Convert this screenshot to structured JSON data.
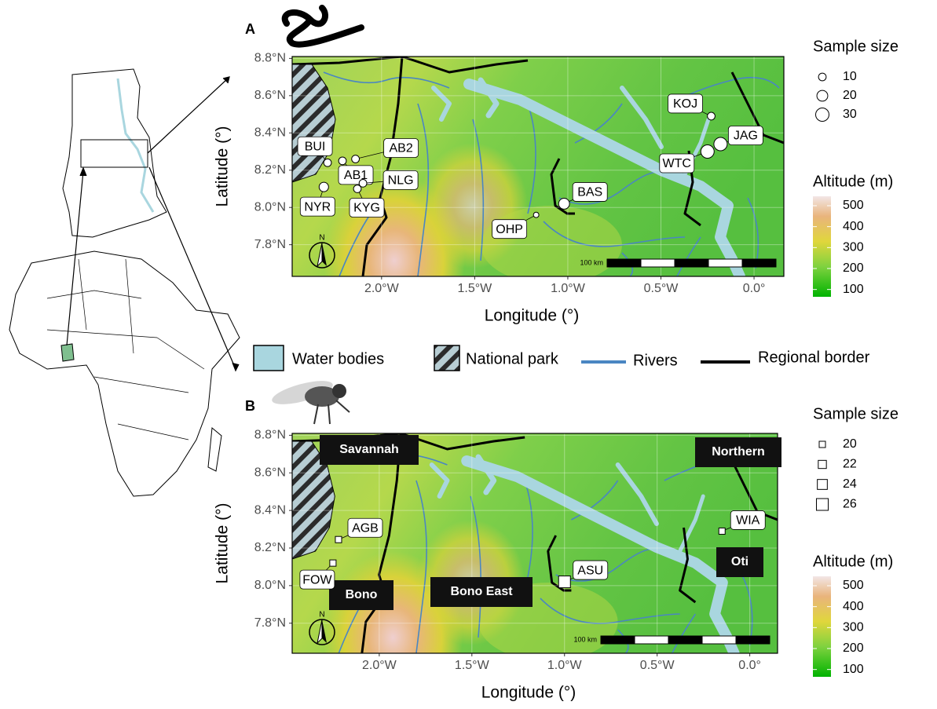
{
  "panels": [
    {
      "letter": "A",
      "xlabel": "Longitude (°)",
      "ylabel": "Latitude (°)",
      "xlim": [
        -2.48,
        0.16
      ],
      "ylim": [
        7.63,
        8.81
      ],
      "xticks": [
        {
          "value": -2,
          "label": "2.0°W"
        },
        {
          "value": -1.5,
          "label": "1.5°W"
        },
        {
          "value": -1,
          "label": "1.0°W"
        },
        {
          "value": -0.5,
          "label": "0.5°W"
        },
        {
          "value": 0,
          "label": "0.0°"
        }
      ],
      "yticks": [
        {
          "value": 7.8,
          "label": "7.8°N"
        },
        {
          "value": 8,
          "label": "8.0°N"
        },
        {
          "value": 8.2,
          "label": "8.2°N"
        },
        {
          "value": 8.4,
          "label": "8.4°N"
        },
        {
          "value": 8.6,
          "label": "8.6°N"
        },
        {
          "value": 8.8,
          "label": "8.8°N"
        }
      ],
      "scale_label": "100 km",
      "north": "N",
      "sites": [
        {
          "label": "KOJ",
          "lon": -0.23,
          "lat": 8.49,
          "size": 10
        },
        {
          "label": "JAG",
          "lon": -0.18,
          "lat": 8.34,
          "size": 30
        },
        {
          "label": "WTC",
          "lon": -0.25,
          "lat": 8.3,
          "size": 30
        },
        {
          "label": "BAS",
          "lon": -1.02,
          "lat": 8.02,
          "size": 20
        },
        {
          "label": "OHP",
          "lon": -1.17,
          "lat": 7.96,
          "size": 5
        },
        {
          "label": "BUI",
          "lon": -2.29,
          "lat": 8.24,
          "size": 10
        },
        {
          "label": "AB1",
          "lon": -2.21,
          "lat": 8.25,
          "size": 10
        },
        {
          "label": "AB2",
          "lon": -2.14,
          "lat": 8.26,
          "size": 10
        },
        {
          "label": "NLG",
          "lon": -2.1,
          "lat": 8.13,
          "size": 10
        },
        {
          "label": "KYG",
          "lon": -2.13,
          "lat": 8.1,
          "size": 10
        },
        {
          "label": "NYR",
          "lon": -2.31,
          "lat": 8.11,
          "size": 15
        }
      ],
      "regions": []
    },
    {
      "letter": "B",
      "xlabel": "Longitude (°)",
      "ylabel": "Latitude (°)",
      "xlim": [
        -2.47,
        0.15
      ],
      "ylim": [
        7.64,
        8.81
      ],
      "xticks": [
        {
          "value": -2,
          "label": "2.0°W"
        },
        {
          "value": -1.5,
          "label": "1.5°W"
        },
        {
          "value": -1,
          "label": "1.0°W"
        },
        {
          "value": -0.5,
          "label": "0.5°W"
        },
        {
          "value": 0,
          "label": "0.0°"
        }
      ],
      "yticks": [
        {
          "value": 7.8,
          "label": "7.8°N"
        },
        {
          "value": 8,
          "label": "8.0°N"
        },
        {
          "value": 8.2,
          "label": "8.2°N"
        },
        {
          "value": 8.4,
          "label": "8.4°N"
        },
        {
          "value": 8.6,
          "label": "8.6°N"
        },
        {
          "value": 8.8,
          "label": "8.8°N"
        }
      ],
      "scale_label": "100 km",
      "north": "N",
      "sites": [
        {
          "label": "AGB",
          "lon": -2.22,
          "lat": 8.245,
          "size": 20
        },
        {
          "label": "FOW",
          "lon": -2.25,
          "lat": 8.12,
          "size": 20
        },
        {
          "label": "ASU",
          "lon": -1,
          "lat": 8.02,
          "size": 26
        },
        {
          "label": "WIA",
          "lon": -0.15,
          "lat": 8.29,
          "size": 20
        }
      ],
      "regions": [
        "Savannah",
        "Northern",
        "Bono",
        "Bono East",
        "Oti"
      ]
    }
  ],
  "legend": {
    "water": "Water bodies",
    "park": "National park",
    "rivers": "Rivers",
    "border": "Regional border"
  },
  "size_legends": [
    {
      "title": "Sample size",
      "values": [
        10,
        20,
        30
      ]
    },
    {
      "title": "Sample size",
      "values": [
        20,
        22,
        24,
        26
      ]
    }
  ],
  "altitude_legends": [
    {
      "title": "Altitude (m)",
      "ticks": [
        500,
        400,
        300,
        200,
        100
      ],
      "lim": [
        65,
        545
      ]
    },
    {
      "title": "Altitude (m)",
      "ticks": [
        500,
        400,
        300,
        200,
        100
      ],
      "lim": [
        65,
        545
      ]
    }
  ]
}
